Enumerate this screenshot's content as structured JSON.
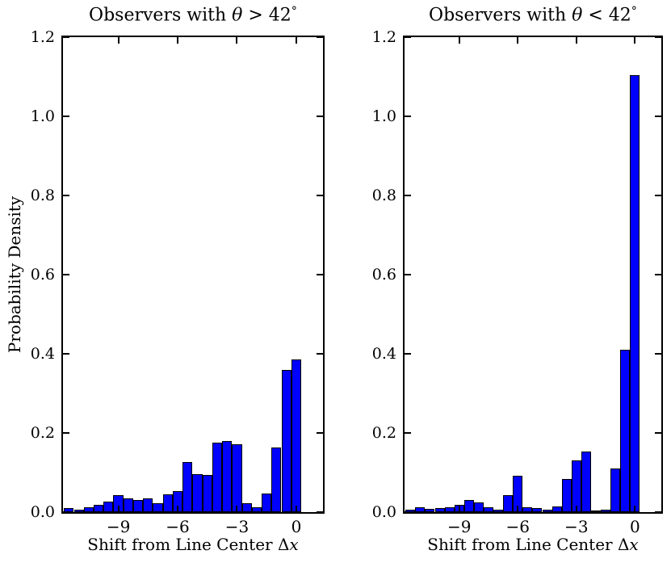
{
  "figure": {
    "background": "#ffffff",
    "bar_fill": "#0000ff",
    "bar_edge": "#000000",
    "axis_color": "#000000",
    "grid": "off",
    "legend": "none"
  },
  "chart_data": [
    {
      "type": "bar",
      "subtype": "histogram",
      "title": "Observers with θ > 42°",
      "title_parts": {
        "prefix": "Observers with ",
        "theta": "θ",
        "mid": " > 42",
        "degree": "°"
      },
      "xlabel": "Shift from Line Center Δx",
      "xlabel_parts": {
        "text": "Shift from Line Center ",
        "delta": "Δ",
        "var": "x"
      },
      "ylabel": "Probability Density",
      "xlim": [
        -11.8,
        1.35
      ],
      "ylim": [
        0,
        1.2
      ],
      "xticks": [
        -9,
        -6,
        -3,
        0
      ],
      "xtick_labels": [
        "−9",
        "−6",
        "−3",
        "0"
      ],
      "yticks": [
        0,
        0.2,
        0.4,
        0.6,
        0.8,
        1.0,
        1.2
      ],
      "ytick_labels": [
        "0.0",
        "0.2",
        "0.4",
        "0.6",
        "0.8",
        "1.0",
        "1.2"
      ],
      "bin_width": 0.5,
      "bin_centers": [
        -11.5,
        -11.0,
        -10.5,
        -10.0,
        -9.5,
        -9.0,
        -8.5,
        -8.0,
        -7.5,
        -7.0,
        -6.5,
        -6.0,
        -5.5,
        -5.0,
        -4.5,
        -4.0,
        -3.5,
        -3.0,
        -2.5,
        -2.0,
        -1.5,
        -1.0,
        -0.5,
        0.0
      ],
      "values": [
        0.01,
        0.007,
        0.012,
        0.019,
        0.027,
        0.043,
        0.035,
        0.03,
        0.034,
        0.022,
        0.046,
        0.054,
        0.127,
        0.097,
        0.094,
        0.175,
        0.18,
        0.171,
        0.022,
        0.012,
        0.047,
        0.164,
        0.36,
        0.385
      ]
    },
    {
      "type": "bar",
      "subtype": "histogram",
      "title": "Observers with θ < 42°",
      "title_parts": {
        "prefix": "Observers with ",
        "theta": "θ",
        "mid": " < 42",
        "degree": "°"
      },
      "xlabel": "Shift from Line Center Δx",
      "xlabel_parts": {
        "text": "Shift from Line Center ",
        "delta": "Δ",
        "var": "x"
      },
      "ylabel": "",
      "xlim": [
        -11.8,
        1.35
      ],
      "ylim": [
        0,
        1.2
      ],
      "xticks": [
        -9,
        -6,
        -3,
        0
      ],
      "xtick_labels": [
        "−9",
        "−6",
        "−3",
        "0"
      ],
      "yticks": [
        0,
        0.2,
        0.4,
        0.6,
        0.8,
        1.0,
        1.2
      ],
      "ytick_labels": [
        "0.0",
        "0.2",
        "0.4",
        "0.6",
        "0.8",
        "1.0",
        "1.2"
      ],
      "bin_width": 0.5,
      "bin_centers": [
        -11.5,
        -11.0,
        -10.5,
        -10.0,
        -9.5,
        -9.0,
        -8.5,
        -8.0,
        -7.5,
        -7.0,
        -6.5,
        -6.0,
        -5.5,
        -5.0,
        -4.5,
        -4.0,
        -3.5,
        -3.0,
        -2.5,
        -2.0,
        -1.5,
        -1.0,
        -0.5,
        0.0
      ],
      "values": [
        0.006,
        0.012,
        0.009,
        0.011,
        0.013,
        0.018,
        0.03,
        0.024,
        0.012,
        0.006,
        0.043,
        0.092,
        0.013,
        0.011,
        0.007,
        0.015,
        0.084,
        0.13,
        0.153,
        0.003,
        0.006,
        0.11,
        0.41,
        1.104
      ]
    }
  ]
}
